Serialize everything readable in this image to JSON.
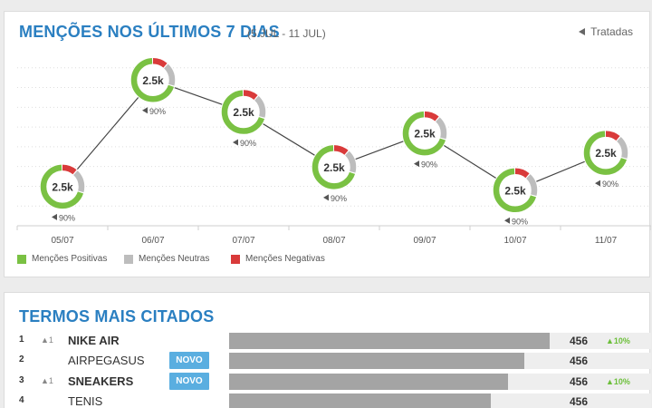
{
  "colors": {
    "accent": "#2a7fc1",
    "positive": "#7ac143",
    "neutral": "#bdbdbd",
    "negative": "#d93a3a",
    "line": "#444444",
    "badge": "#5aaee0",
    "bar": "#a4a4a4"
  },
  "mentions": {
    "title": "MENÇÕES NOS ÚLTIMOS 7 DIAS",
    "date_range": "(5 JUL - 11 JUL)",
    "tratadas_label": "Tratadas",
    "tratadas_icon": "flag-icon",
    "legend": [
      {
        "label": "Menções Positivas",
        "color": "#7ac143"
      },
      {
        "label": "Menções Neutras",
        "color": "#bdbdbd"
      },
      {
        "label": "Menções Negativas",
        "color": "#d93a3a"
      }
    ]
  },
  "chart_data": {
    "type": "line",
    "title": "MENÇÕES NOS ÚLTIMOS 7 DIAS",
    "categories": [
      "05/07",
      "06/07",
      "07/07",
      "08/07",
      "09/07",
      "10/07",
      "11/07"
    ],
    "series": [
      {
        "values": [
          2.2,
          8.2,
          6.4,
          3.3,
          5.2,
          2.0,
          4.1
        ]
      }
    ],
    "labels": [
      "2.5k",
      "2.5k",
      "2.5k",
      "2.5k",
      "2.5k",
      "2.5k",
      "2.5k"
    ],
    "treated": [
      "90%",
      "90%",
      "90%",
      "90%",
      "90%",
      "90%",
      "90%"
    ],
    "donut_shares": {
      "positive": 0.7,
      "neutral": 0.18,
      "negative": 0.12
    },
    "ylim": [
      0,
      10
    ],
    "grid": true,
    "legend": "bottom-left"
  },
  "terms": {
    "title": "TERMOS MAIS CITADOS",
    "max_count": 456,
    "items": [
      {
        "rank": "1",
        "delta": "▲1",
        "term": "NIKE AIR",
        "bold": true,
        "badge": "",
        "count": "456",
        "share": 0.76,
        "pct": "▲10%"
      },
      {
        "rank": "2",
        "delta": "",
        "term": "AIRPEGASUS",
        "bold": false,
        "badge": "NOVO",
        "count": "456",
        "share": 0.7,
        "pct": ""
      },
      {
        "rank": "3",
        "delta": "▲1",
        "term": "SNEAKERS",
        "bold": true,
        "badge": "NOVO",
        "count": "456",
        "share": 0.66,
        "pct": "▲10%"
      },
      {
        "rank": "4",
        "delta": "",
        "term": "TENIS",
        "bold": false,
        "badge": "",
        "count": "456",
        "share": 0.62,
        "pct": ""
      }
    ]
  }
}
